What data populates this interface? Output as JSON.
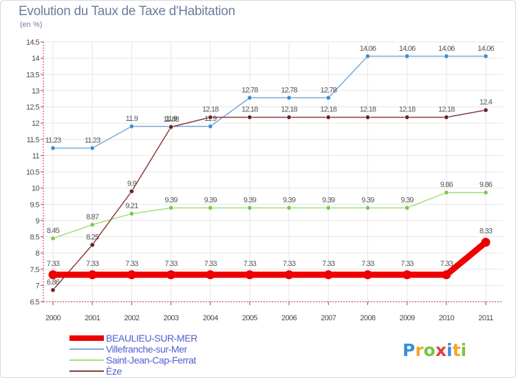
{
  "title": "Evolution du Taux de Taxe d'Habitation",
  "unit_label": "(en %)",
  "logo": {
    "text": "Proxiti",
    "letter_colors": [
      "#3a8fd8",
      "#f5a623",
      "#7cc242",
      "#e23d3d",
      "#3a8fd8",
      "#f5a623",
      "#7cc242"
    ]
  },
  "chart_data": {
    "type": "line",
    "title": "Evolution du Taux de Taxe d'Habitation",
    "ylabel": "(en %)",
    "xlabel": "",
    "x": [
      "2000",
      "2001",
      "2002",
      "2003",
      "2004",
      "2005",
      "2006",
      "2007",
      "2008",
      "2009",
      "2010",
      "2011"
    ],
    "ylim": [
      6.5,
      14.5
    ],
    "yticks": [
      "6.5",
      "7",
      "7.5",
      "8",
      "8.5",
      "9",
      "9.5",
      "10",
      "10.5",
      "11",
      "11.5",
      "12",
      "12.5",
      "13",
      "13.5",
      "14",
      "14.5"
    ],
    "grid": true,
    "legend_position": "bottom-left",
    "series": [
      {
        "name": "BEAULIEU-SUR-MER",
        "color": "#ee0000",
        "emphasis": true,
        "values": [
          7.33,
          7.33,
          7.33,
          7.33,
          7.33,
          7.33,
          7.33,
          7.33,
          7.33,
          7.33,
          7.33,
          8.33
        ],
        "labels": [
          "7.33",
          "7.33",
          "7.33",
          "7.33",
          "7.33",
          "7.33",
          "7.33",
          "7.33",
          "7.33",
          "7.33",
          "7.33",
          "8.33"
        ]
      },
      {
        "name": "Villefranche-sur-Mer",
        "color": "#7aa8d6",
        "marker_color": "#3d8fd1",
        "values": [
          11.23,
          11.23,
          11.9,
          11.9,
          11.9,
          12.78,
          12.78,
          12.78,
          14.06,
          14.06,
          14.06,
          14.06
        ],
        "labels": [
          "11.23",
          "11.23",
          "11.9",
          "11.9",
          "11.9",
          "12.78",
          "12.78",
          "12.78",
          "14.06",
          "14.06",
          "14.06",
          "14.06"
        ]
      },
      {
        "name": "Saint-Jean-Cap-Ferrat",
        "color": "#a6dd7a",
        "marker_color": "#77cc44",
        "values": [
          8.45,
          8.87,
          9.21,
          9.39,
          9.39,
          9.39,
          9.39,
          9.39,
          9.39,
          9.39,
          9.86,
          9.86
        ],
        "labels": [
          "8.45",
          "8.87",
          "9.21",
          "9.39",
          "9.39",
          "9.39",
          "9.39",
          "9.39",
          "9.39",
          "9.39",
          "9.86",
          "9.86"
        ]
      },
      {
        "name": "Èze",
        "color": "#8a3a3a",
        "marker_color": "#6b1f2a",
        "values": [
          6.86,
          8.25,
          9.9,
          11.88,
          12.18,
          12.18,
          12.18,
          12.18,
          12.18,
          12.18,
          12.18,
          12.4
        ],
        "labels": [
          "6.86",
          "8.25",
          "9.9",
          "11.88",
          "12.18",
          "12.18",
          "12.18",
          "12.18",
          "12.18",
          "12.18",
          "12.18",
          "12.4"
        ]
      }
    ]
  }
}
